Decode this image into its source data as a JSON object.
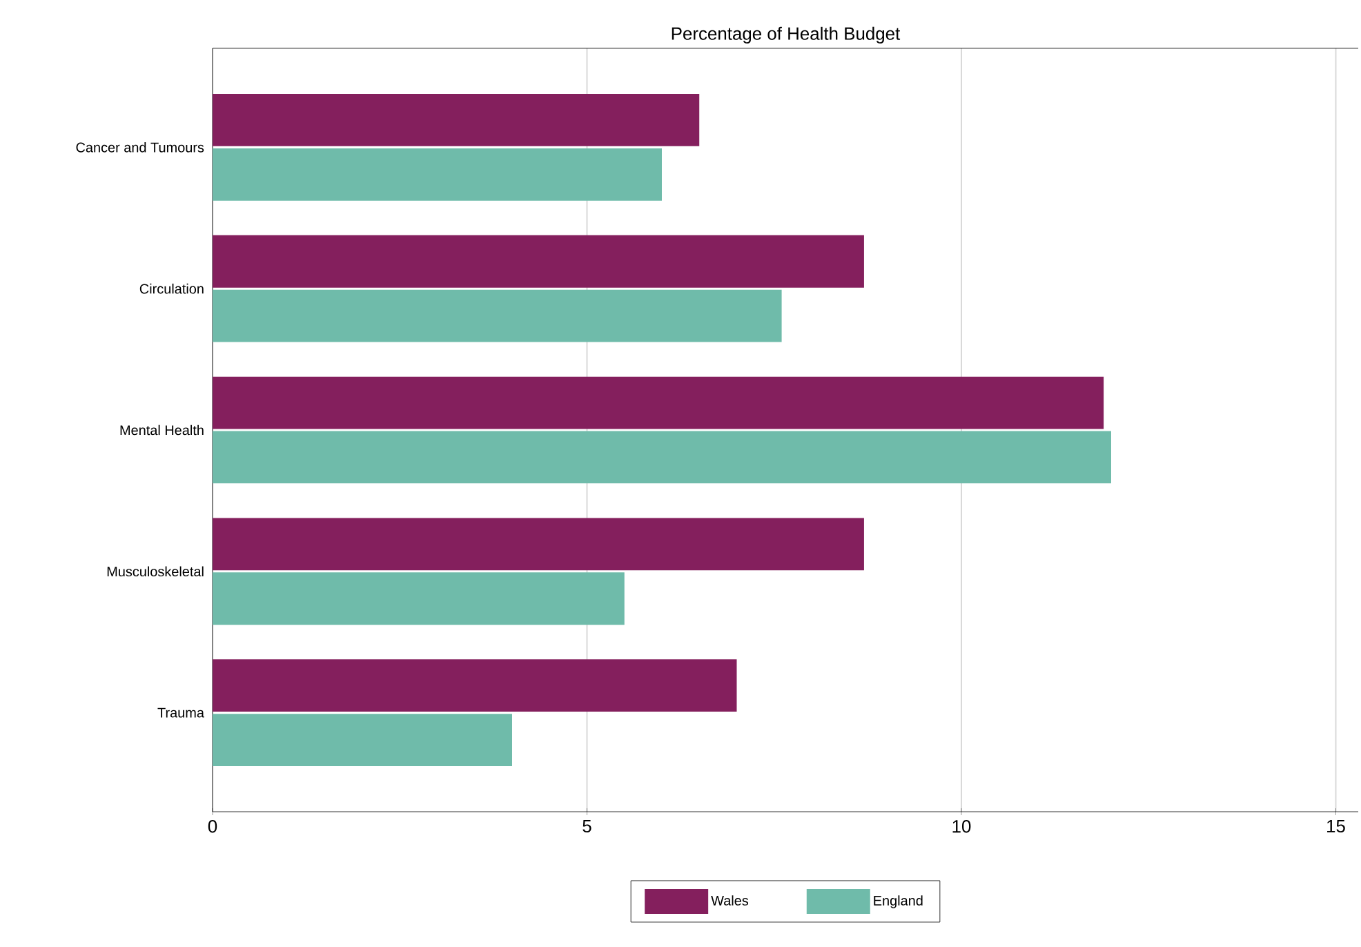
{
  "chart_data": {
    "type": "bar",
    "orientation": "horizontal",
    "title": "Percentage of Health Budget",
    "categories": [
      "Cancer and Tumours",
      "Circulation",
      "Mental Health",
      "Musculoskeletal",
      "Trauma"
    ],
    "series": [
      {
        "name": "Wales",
        "color": "#841f5d",
        "values": [
          6.5,
          8.7,
          11.9,
          8.7,
          7.0
        ]
      },
      {
        "name": "England",
        "color": "#6fbbaa",
        "values": [
          6.0,
          7.6,
          12.0,
          5.5,
          4.0
        ]
      }
    ],
    "xlim": [
      0,
      15.3
    ],
    "xticks": [
      0,
      5,
      10,
      15
    ],
    "grid": "x",
    "legend": "bottom"
  }
}
